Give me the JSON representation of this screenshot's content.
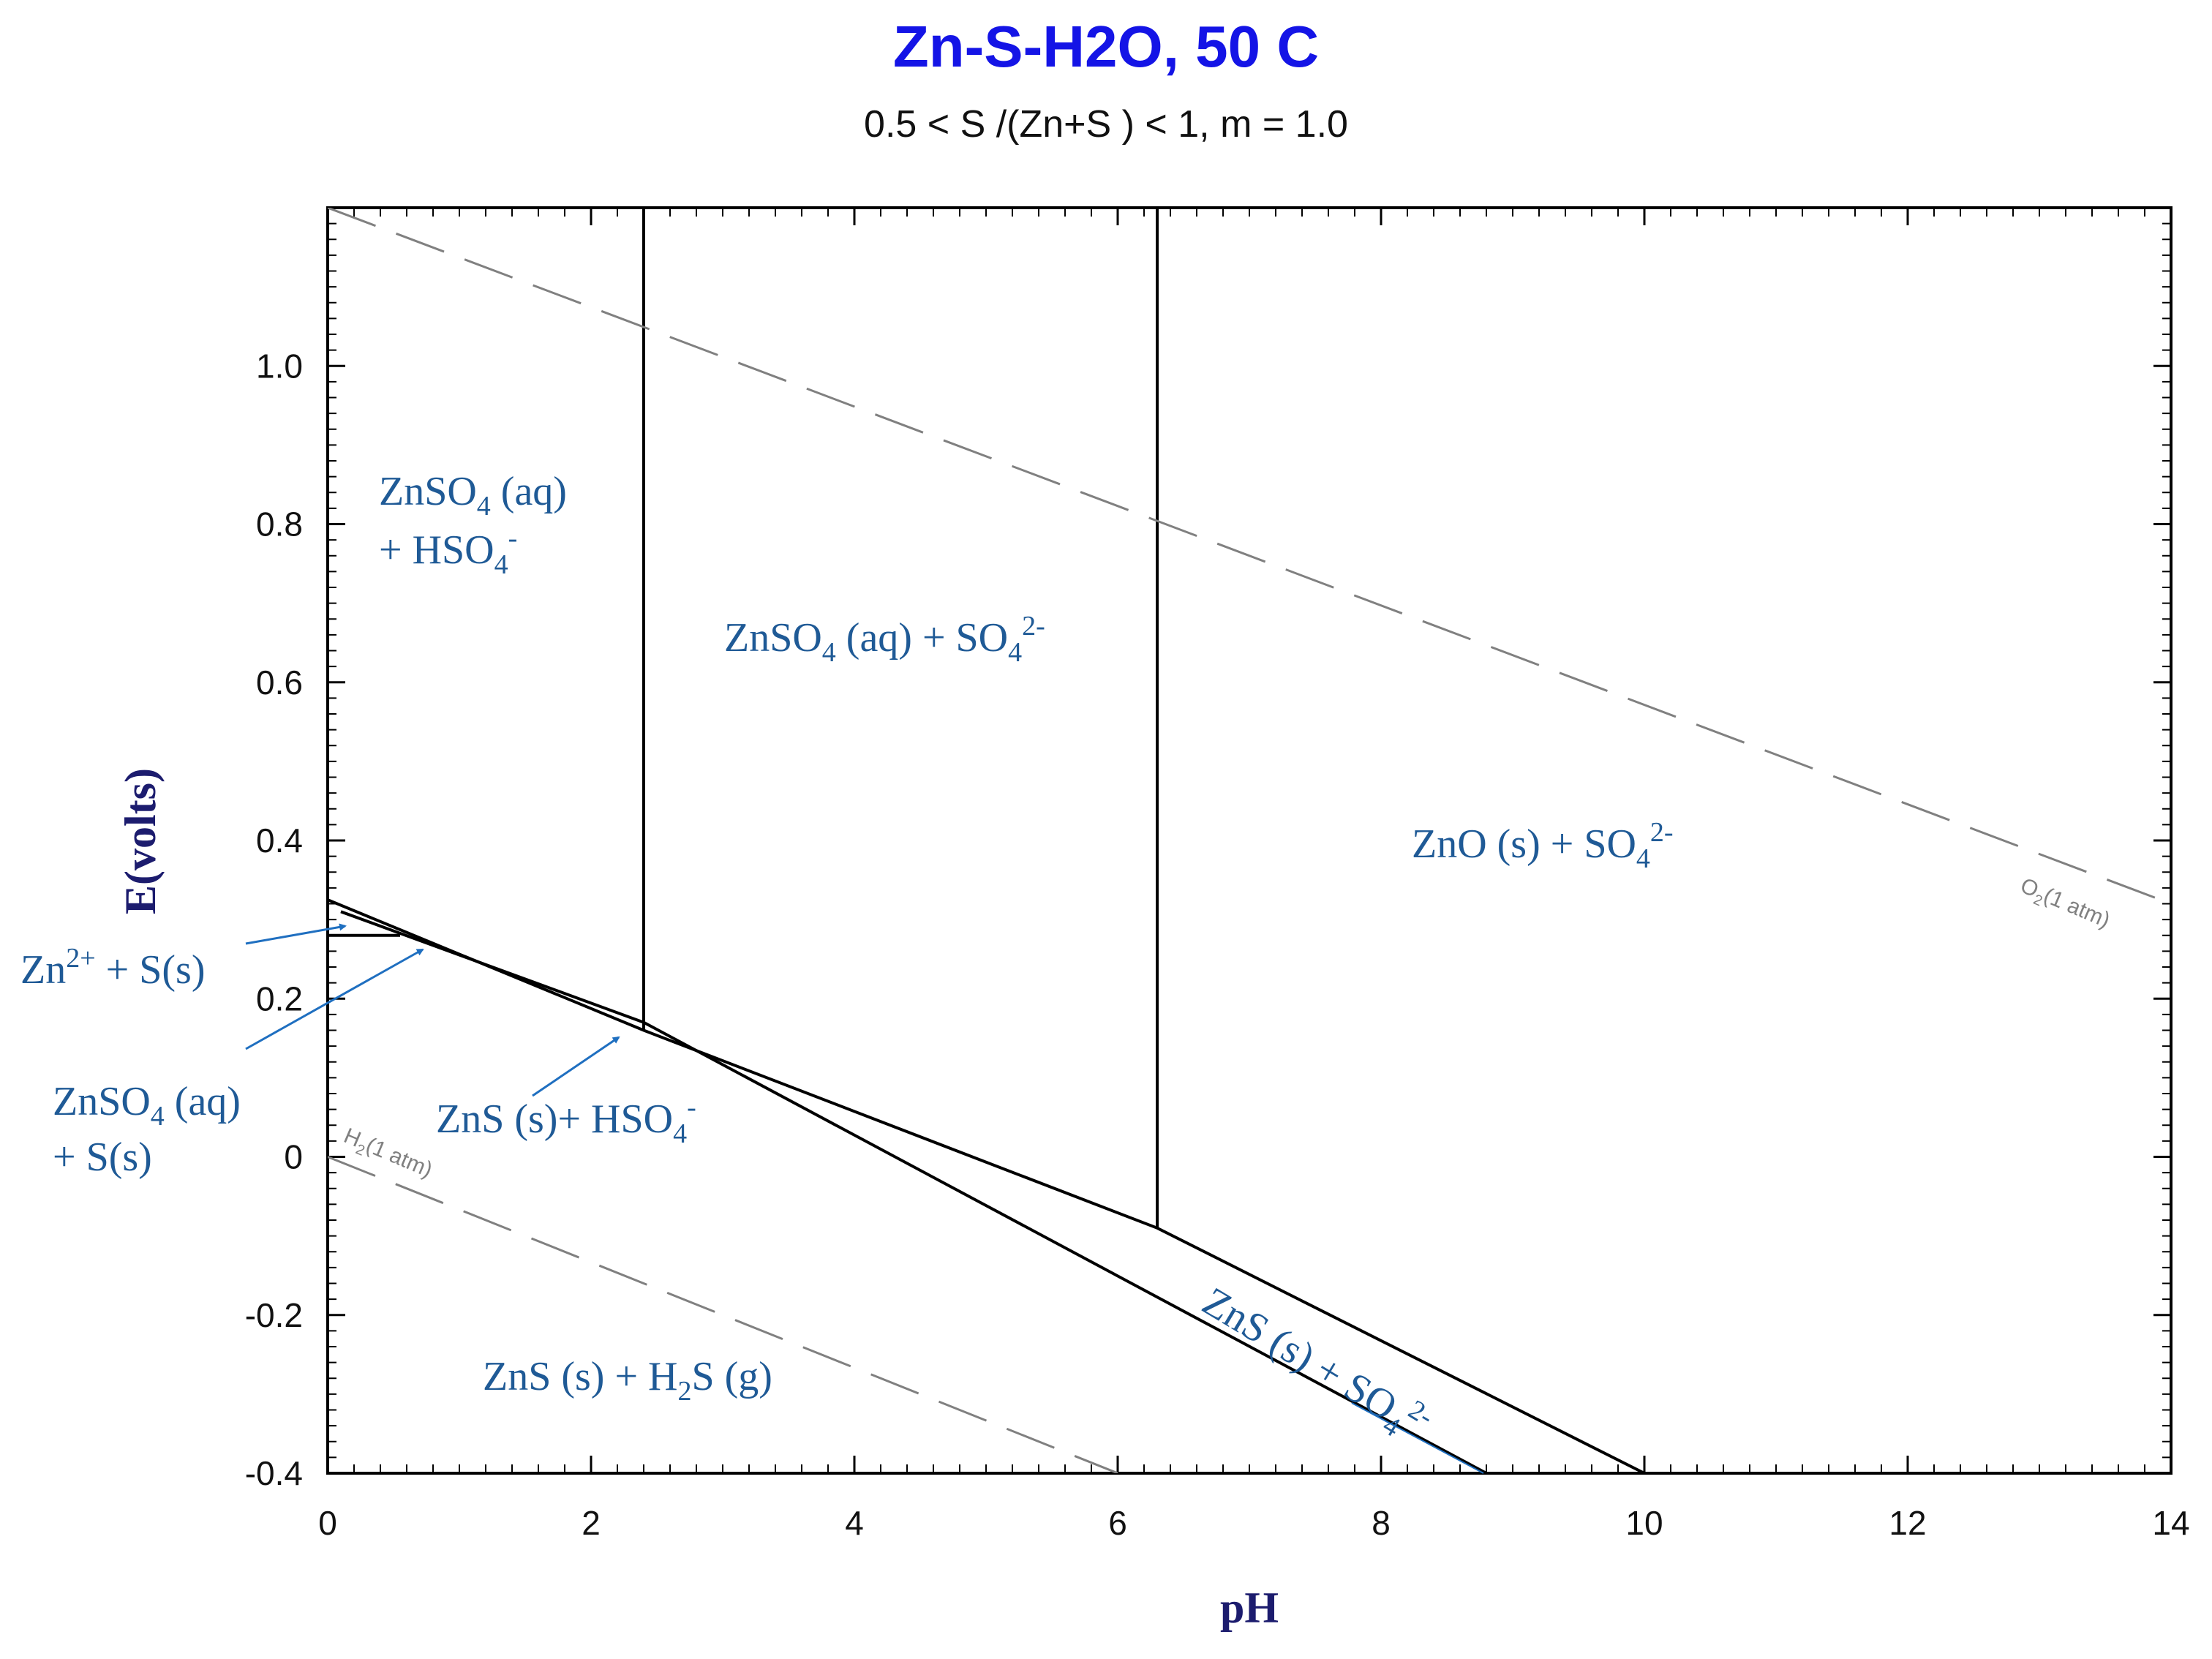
{
  "chart_data": {
    "type": "line",
    "title": "Zn-S-H2O, 50 C",
    "subtitle": "0.5 < S /(Zn+S ) < 1, m = 1.0",
    "xlabel": "pH",
    "ylabel": "E(volts)",
    "xlim": [
      0,
      14
    ],
    "ylim": [
      -0.4,
      1.2
    ],
    "grid": false,
    "x_ticks": [
      0,
      2,
      4,
      6,
      8,
      10,
      12,
      14
    ],
    "x_tick_labels": [
      "0",
      "2",
      "4",
      "6",
      "8",
      "10",
      "12",
      "14"
    ],
    "y_ticks": [
      -0.4,
      -0.2,
      0,
      0.2,
      0.4,
      0.6,
      0.8,
      1.0
    ],
    "y_tick_labels": [
      "-0.4",
      "-0.2",
      "0",
      "0.2",
      "0.4",
      "0.6",
      "0.8",
      "1.0"
    ],
    "series": [
      {
        "name": "ZnS/SO4 boundary",
        "style": "solid",
        "x": [
          0,
          2.4,
          6.3,
          10.0
        ],
        "y": [
          0.325,
          0.16,
          -0.09,
          -0.4
        ]
      },
      {
        "name": "ZnS/HSO4 lower boundary",
        "style": "solid",
        "x": [
          0.1,
          2.4,
          8.8
        ],
        "y": [
          0.31,
          0.17,
          -0.4
        ]
      },
      {
        "name": "Zn2+/S(s) boundary",
        "style": "solid",
        "x": [
          0,
          0.55
        ],
        "y": [
          0.28,
          0.28
        ]
      },
      {
        "name": "ZnSO4(aq)/ZnSO4(aq)+SO4 boundary",
        "style": "solid",
        "x": [
          2.4,
          2.4
        ],
        "y": [
          0.16,
          1.2
        ]
      },
      {
        "name": "ZnSO4(aq)/ZnO(s) boundary",
        "style": "solid",
        "x": [
          6.3,
          6.3
        ],
        "y": [
          -0.09,
          1.2
        ]
      },
      {
        "name": "O2 (1 atm)",
        "style": "dashed",
        "x": [
          0,
          14
        ],
        "y": [
          1.2,
          0.32
        ]
      },
      {
        "name": "H2 (1 atm)",
        "style": "dashed",
        "x": [
          0,
          6.0
        ],
        "y": [
          0.0,
          -0.4
        ]
      }
    ],
    "line_labels": {
      "o2": {
        "base": "O",
        "sub": "2",
        "rest": "(1 atm)"
      },
      "h2": {
        "base": "H",
        "sub": "2",
        "rest": "(1 atm)"
      }
    },
    "region_labels": {
      "znso4_hso4": {
        "line1_a": "ZnSO",
        "line1_sub": "4",
        "line1_b": " (aq)",
        "line2_a": "+ HSO",
        "line2_sub": "4",
        "line2_sup": "-"
      },
      "znso4_so4": {
        "a": "ZnSO",
        "sub1": "4",
        "b": " (aq) + SO",
        "sub2": "4",
        "sup": "2-"
      },
      "zno_so4": {
        "a": "ZnO (s) + SO",
        "sub": "4",
        "sup": "2-"
      },
      "zn2_s": {
        "a": "Zn",
        "sup": "2+",
        "b": " + S(s)"
      },
      "znso4_s": {
        "line1_a": "ZnSO",
        "line1_sub": "4",
        "line1_b": " (aq)",
        "line2": "+ S(s)"
      },
      "zns_hso4": {
        "a": "ZnS (s)+ HSO",
        "sub": "4",
        "sup": "-"
      },
      "zns_h2s": {
        "a": "ZnS (s) + H",
        "sub": "2",
        "b": "S (g)"
      },
      "zns_so4": {
        "a": "ZnS (s) + SO",
        "sub": "4",
        "sup": "2-"
      }
    },
    "colors": {
      "title": "#1414e6",
      "region_text": "#1f5a96",
      "arrow": "#1f6fc0",
      "axis_label": "#1c1c6e",
      "dashed": "#808080",
      "line": "#000000"
    }
  }
}
